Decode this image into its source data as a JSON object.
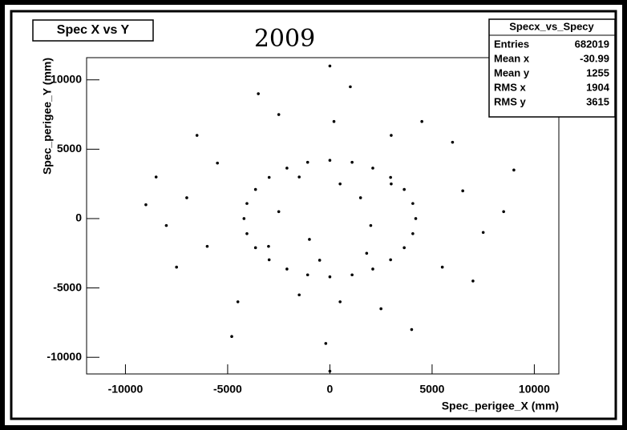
{
  "chart_data": {
    "type": "scatter",
    "title": "Spec X vs Y",
    "annotation": "2009",
    "x_label": "Spec_perigee_X (mm)",
    "y_label": "Spec_perigee_Y (mm)",
    "color": "#000000",
    "xlim": [
      -11900,
      11200
    ],
    "ylim": [
      -11200,
      11600
    ],
    "xticks": [
      -10000,
      -5000,
      0,
      5000,
      10000
    ],
    "yticks": [
      -10000,
      -5000,
      0,
      5000,
      10000
    ],
    "x": [
      4200,
      4057,
      3637,
      2970,
      2100,
      1087,
      0,
      -1087,
      -2100,
      -2970,
      -3637,
      -4057,
      -4200,
      -4057,
      -3637,
      -2970,
      -2100,
      -1087,
      0,
      1087,
      2100,
      2970,
      3637,
      4057,
      -7000,
      -6000,
      -8000,
      6500,
      7500,
      5500,
      -5500,
      3000,
      -2500,
      1000,
      0,
      -200,
      500,
      -1500,
      2500,
      -4500,
      6000,
      -6500,
      8500,
      -9000,
      1500,
      -1000,
      2000,
      -2500,
      500,
      -500,
      3000,
      -3000,
      4500,
      -3500,
      200,
      -7500,
      7000,
      -8500,
      9000,
      -1500,
      1800,
      0,
      -4800,
      4000
    ],
    "values": [
      0,
      1087,
      2100,
      2970,
      3637,
      4057,
      4200,
      4057,
      3637,
      2970,
      2100,
      1087,
      0,
      -1087,
      -2100,
      -2970,
      -3637,
      -4057,
      -4200,
      -4057,
      -3637,
      -2970,
      -2100,
      -1087,
      1500,
      -2000,
      -500,
      2000,
      -1000,
      -3500,
      4000,
      6000,
      7500,
      9500,
      11000,
      -9000,
      -6000,
      -5500,
      -6500,
      -6000,
      5500,
      6000,
      500,
      1000,
      1500,
      -1500,
      -500,
      500,
      2500,
      -3000,
      2500,
      -2000,
      7000,
      9000,
      7000,
      -3500,
      -4500,
      3000,
      3500,
      3000,
      -2500,
      -11000,
      -8500,
      -8000
    ],
    "stats": {
      "title": "Specx_vs_Specy",
      "rows": [
        [
          "Entries",
          682019
        ],
        [
          "Mean x",
          -30.99
        ],
        [
          "Mean y",
          1255
        ],
        [
          "RMS x",
          1904
        ],
        [
          "RMS y",
          3615
        ]
      ]
    }
  }
}
